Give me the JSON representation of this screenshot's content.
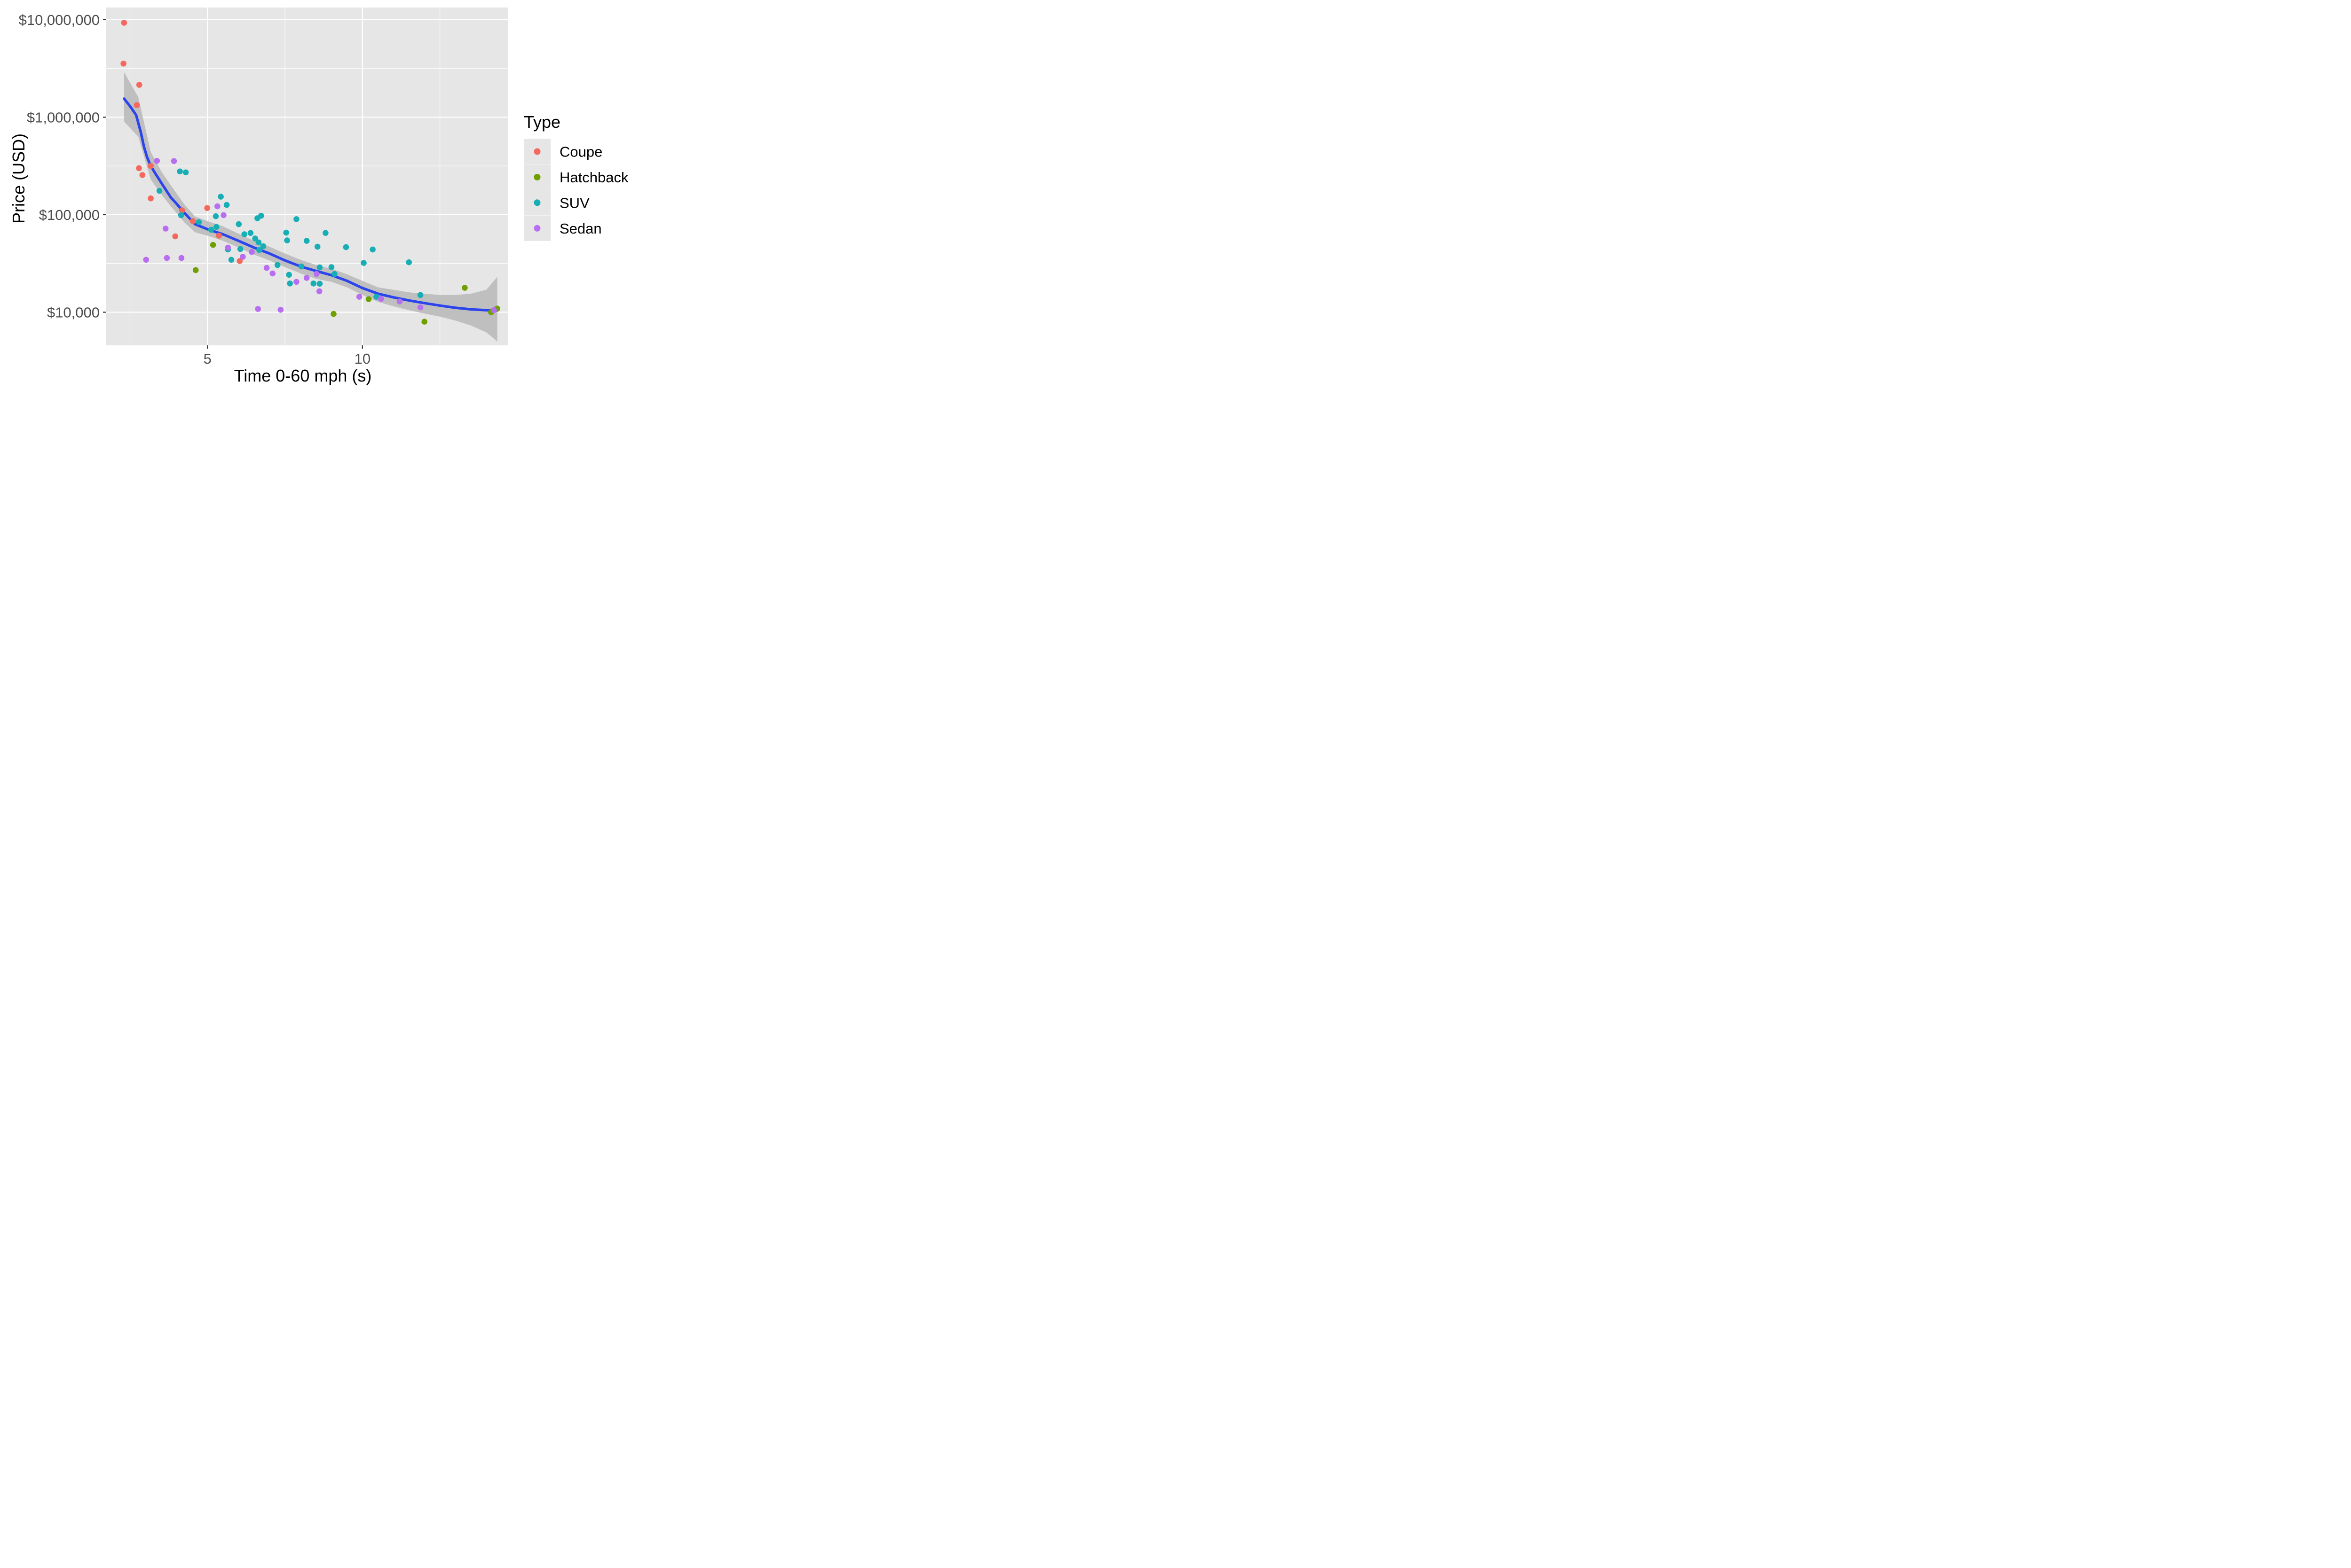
{
  "chart_data": {
    "type": "scatter",
    "title": "",
    "xlabel": "Time 0-60 mph (s)",
    "ylabel": "Price (USD)",
    "x_axis": {
      "scale": "linear",
      "domain": [
        1.735,
        14.69
      ],
      "ticks": [
        {
          "value": 5,
          "label": "5"
        },
        {
          "value": 10,
          "label": "10"
        }
      ],
      "minor_breaks": [
        2.5,
        7.5,
        12.5
      ]
    },
    "y_axis": {
      "scale": "log10",
      "log10_domain": [
        3.66,
        7.125
      ],
      "ticks": [
        {
          "value": 10000000,
          "label": "$10,000,000"
        },
        {
          "value": 1000000,
          "label": "$1,000,000"
        },
        {
          "value": 100000,
          "label": "$100,000"
        },
        {
          "value": 10000,
          "label": "$10,000"
        }
      ],
      "minor_breaks": [
        31623,
        316228,
        3162278
      ]
    },
    "legend": {
      "title": "Type",
      "position": "right"
    },
    "colors": {
      "panel_bg": "#E6E6E6",
      "grid": "#FFFFFF",
      "tick": "#333333",
      "tick_label": "#4D4D4D",
      "smooth_line": "#2B44EC",
      "ribbon": "#BFBFBF"
    },
    "series": [
      {
        "name": "Coupe",
        "color": "#F4685E",
        "points": [
          [
            2.31,
            9300000
          ],
          [
            2.29,
            3550000
          ],
          [
            2.8,
            2150000
          ],
          [
            2.72,
            1330000
          ],
          [
            2.79,
            300000
          ],
          [
            2.9,
            255000
          ],
          [
            3.17,
            317000
          ],
          [
            3.17,
            147000
          ],
          [
            4.18,
            111000
          ],
          [
            4.53,
            86000
          ],
          [
            3.96,
            60000
          ],
          [
            4.99,
            117000
          ],
          [
            5.37,
            61000
          ],
          [
            6.04,
            33500
          ]
        ]
      },
      {
        "name": "Hatchback",
        "color": "#6FA000",
        "points": [
          [
            4.62,
            27000
          ],
          [
            5.18,
            49000
          ],
          [
            9.07,
            9600
          ],
          [
            10.2,
            13600
          ],
          [
            12.0,
            8000
          ],
          [
            13.3,
            17800
          ],
          [
            14.15,
            10000
          ],
          [
            14.35,
            10900
          ]
        ]
      },
      {
        "name": "SUV",
        "color": "#17AEB5",
        "points": [
          [
            3.45,
            176000
          ],
          [
            4.11,
            278000
          ],
          [
            4.3,
            272000
          ],
          [
            4.15,
            99000
          ],
          [
            4.72,
            84000
          ],
          [
            5.27,
            96500
          ],
          [
            5.12,
            70000
          ],
          [
            5.29,
            75000
          ],
          [
            5.43,
            153000
          ],
          [
            5.62,
            126000
          ],
          [
            5.66,
            44000
          ],
          [
            5.77,
            34500
          ],
          [
            6.01,
            80000
          ],
          [
            6.06,
            44500
          ],
          [
            6.19,
            63000
          ],
          [
            6.39,
            65000
          ],
          [
            6.54,
            57000
          ],
          [
            6.65,
            52000
          ],
          [
            6.61,
            92000
          ],
          [
            6.73,
            97500
          ],
          [
            6.67,
            43500
          ],
          [
            6.8,
            47500
          ],
          [
            7.26,
            30500
          ],
          [
            7.54,
            65500
          ],
          [
            7.57,
            54500
          ],
          [
            7.63,
            24200
          ],
          [
            7.66,
            19700
          ],
          [
            7.87,
            90000
          ],
          [
            8.03,
            29500
          ],
          [
            8.2,
            54000
          ],
          [
            8.42,
            19700
          ],
          [
            8.62,
            19600
          ],
          [
            8.55,
            47000
          ],
          [
            8.62,
            28800
          ],
          [
            9.0,
            29000
          ],
          [
            9.1,
            24700
          ],
          [
            8.81,
            65000
          ],
          [
            9.47,
            46500
          ],
          [
            10.04,
            32000
          ],
          [
            10.33,
            44000
          ],
          [
            10.45,
            14400
          ],
          [
            11.5,
            32500
          ],
          [
            11.87,
            15000
          ]
        ]
      },
      {
        "name": "Sedan",
        "color": "#B76EF0",
        "points": [
          [
            3.37,
            357000
          ],
          [
            3.92,
            355000
          ],
          [
            3.02,
            34500
          ],
          [
            3.65,
            72000
          ],
          [
            3.69,
            36000
          ],
          [
            4.16,
            36000
          ],
          [
            5.32,
            122000
          ],
          [
            5.52,
            99000
          ],
          [
            5.66,
            46000
          ],
          [
            6.14,
            37000
          ],
          [
            6.43,
            41500
          ],
          [
            6.63,
            10800
          ],
          [
            6.91,
            28500
          ],
          [
            7.1,
            25000
          ],
          [
            7.36,
            10600
          ],
          [
            7.87,
            20500
          ],
          [
            8.2,
            22500
          ],
          [
            8.52,
            24700
          ],
          [
            8.61,
            16400
          ],
          [
            9.9,
            14400
          ],
          [
            10.6,
            13700
          ],
          [
            11.2,
            12900
          ],
          [
            11.87,
            11200
          ],
          [
            14.24,
            10500
          ]
        ]
      }
    ],
    "smooth": {
      "line": [
        [
          2.31,
          1550000
        ],
        [
          2.5,
          1300000
        ],
        [
          2.7,
          1050000
        ],
        [
          2.85,
          700000
        ],
        [
          2.95,
          500000
        ],
        [
          3.05,
          390000
        ],
        [
          3.17,
          316000
        ],
        [
          3.35,
          255000
        ],
        [
          3.52,
          210000
        ],
        [
          3.82,
          150000
        ],
        [
          4.0,
          130000
        ],
        [
          4.26,
          104000
        ],
        [
          4.6,
          80000
        ],
        [
          5.0,
          71000
        ],
        [
          5.5,
          63000
        ],
        [
          6.0,
          54000
        ],
        [
          6.5,
          46000
        ],
        [
          7.0,
          40000
        ],
        [
          7.5,
          34000
        ],
        [
          8.0,
          29500
        ],
        [
          8.5,
          26500
        ],
        [
          9.0,
          24000
        ],
        [
          9.5,
          21000
        ],
        [
          10.0,
          17700
        ],
        [
          10.5,
          15500
        ],
        [
          11.0,
          14200
        ],
        [
          11.5,
          13200
        ],
        [
          12.0,
          12400
        ],
        [
          12.5,
          11700
        ],
        [
          13.0,
          11100
        ],
        [
          13.5,
          10700
        ],
        [
          14.0,
          10500
        ],
        [
          14.35,
          10400
        ]
      ],
      "ribbon": [
        [
          2.31,
          900000,
          2900000
        ],
        [
          2.77,
          630000,
          1600000
        ],
        [
          3.17,
          230000,
          440000
        ],
        [
          3.52,
          160000,
          275000
        ],
        [
          3.82,
          122000,
          200000
        ],
        [
          4.26,
          83000,
          127000
        ],
        [
          4.6,
          66000,
          96000
        ],
        [
          5.0,
          61000,
          86000
        ],
        [
          5.5,
          54000,
          76000
        ],
        [
          6.0,
          46000,
          64000
        ],
        [
          6.5,
          39000,
          54000
        ],
        [
          7.0,
          34000,
          47000
        ],
        [
          7.5,
          29000,
          40000
        ],
        [
          8.0,
          25000,
          34500
        ],
        [
          8.5,
          22000,
          30500
        ],
        [
          9.0,
          20500,
          28000
        ],
        [
          9.5,
          18000,
          24500
        ],
        [
          10.0,
          15000,
          21000
        ],
        [
          10.5,
          12800,
          18000
        ],
        [
          11.0,
          11500,
          17000
        ],
        [
          11.5,
          10500,
          16000
        ],
        [
          12.0,
          9700,
          15500
        ],
        [
          12.5,
          9000,
          15000
        ],
        [
          13.0,
          8200,
          15000
        ],
        [
          13.5,
          7300,
          15500
        ],
        [
          14.0,
          6200,
          17000
        ],
        [
          14.35,
          5000,
          23000
        ]
      ]
    }
  }
}
